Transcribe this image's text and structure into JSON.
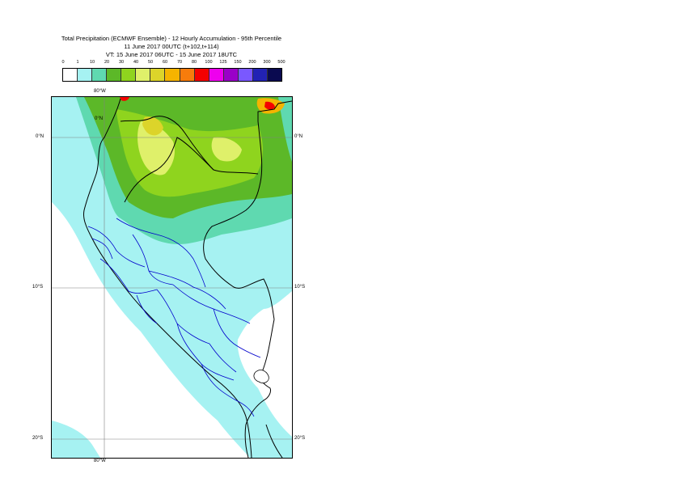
{
  "title": {
    "line1": "Total Precipitation (ECMWF Ensemble) - 12 Hourly Accumulation - 95th Percentile",
    "line2": "11 June 2017 00UTC (t+102,t+114)",
    "line3": "VT: 15 June 2017 06UTC - 15 June 2017 18UTC"
  },
  "legend": {
    "thresholds": [
      "0",
      "1",
      "10",
      "20",
      "30",
      "40",
      "50",
      "60",
      "70",
      "80",
      "100",
      "125",
      "150",
      "200",
      "300",
      "500"
    ],
    "colors": [
      "#ffffff",
      "#a6f2f2",
      "#5fd9b0",
      "#5cb828",
      "#8fd41e",
      "#dff06a",
      "#dcd42a",
      "#f5b400",
      "#f77c0c",
      "#f40000",
      "#ee00ee",
      "#9a00c8",
      "#7a58ff",
      "#2222b4",
      "#0a0a50"
    ]
  },
  "map": {
    "lat_labels": {
      "north": "0°N",
      "ten_south": "10°S",
      "twenty_south": "20°S"
    },
    "lon_labels": {
      "top": "80°W",
      "bottom": "80°W"
    },
    "colors": {
      "light_cyan": "#a6f2f2",
      "teal": "#5fd9b0",
      "green": "#5cb828",
      "yellow_green": "#8fd41e",
      "pale_yellow": "#dff06a",
      "yellow": "#dcd42a",
      "orange": "#f5b400",
      "red": "#f40000",
      "country_border": "#000000",
      "region_border": "#0000cc",
      "graticule": "#808080"
    }
  }
}
